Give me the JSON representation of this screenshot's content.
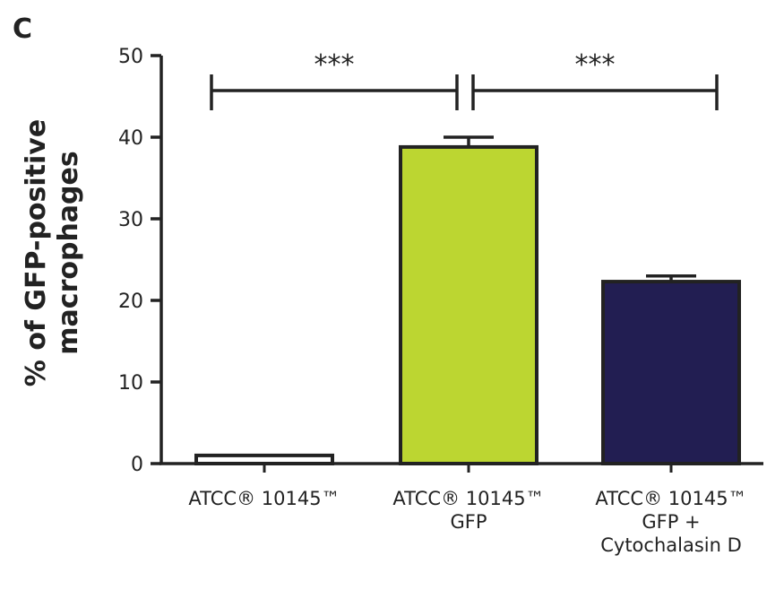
{
  "panel_label": "C",
  "chart_data": {
    "type": "bar",
    "ylabel": "% of GFP-positive macrophages",
    "ylabel_lines": [
      "% of GFP-positive",
      "macrophages"
    ],
    "xlabel": "",
    "ylim": [
      0,
      50
    ],
    "yticks": [
      0,
      10,
      20,
      30,
      40,
      50
    ],
    "categories": [
      [
        "ATCC® 10145™"
      ],
      [
        "ATCC® 10145™",
        "GFP"
      ],
      [
        "ATCC® 10145™",
        "GFP +",
        "Cytochalasin D"
      ]
    ],
    "values": [
      1.0,
      38.8,
      22.3
    ],
    "error": [
      0,
      1.2,
      0.7
    ],
    "bar_colors": [
      "#ffffff",
      "#bcd631",
      "#221e52"
    ],
    "edge_color": "#222222",
    "significance": [
      {
        "from": 0,
        "to": 1,
        "label": "***"
      },
      {
        "from": 1,
        "to": 2,
        "label": "***"
      }
    ]
  }
}
